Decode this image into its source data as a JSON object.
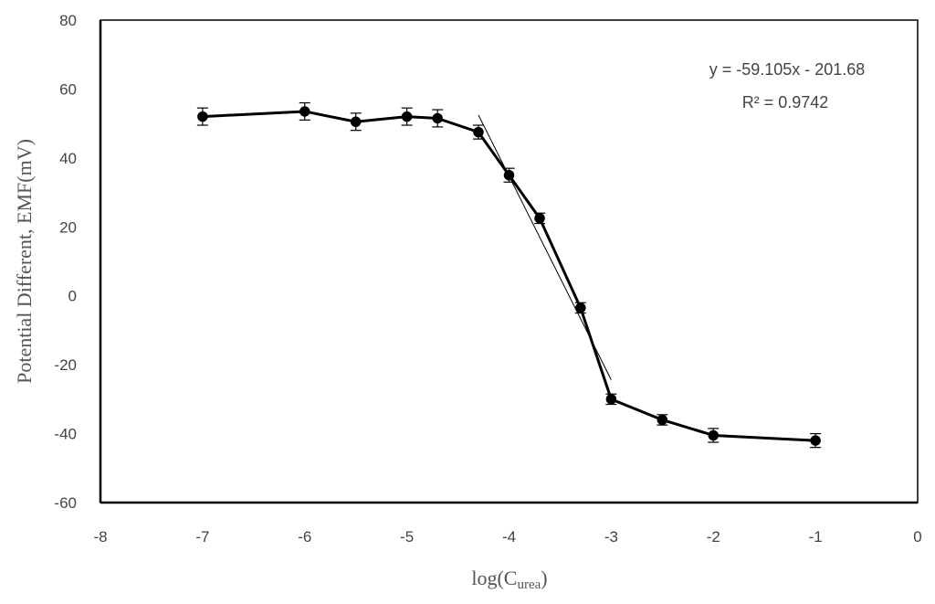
{
  "chart_data": {
    "type": "scatter",
    "title": "",
    "xlabel_main": "log(C",
    "xlabel_sub": "urea",
    "xlabel_close": ")",
    "ylabel": "Potential Different, EMF(mV)",
    "xlim": [
      -8,
      0
    ],
    "ylim": [
      -60,
      80
    ],
    "xticks": [
      -8,
      -7,
      -6,
      -5,
      -4,
      -3,
      -2,
      -1,
      0
    ],
    "yticks": [
      -60,
      -40,
      -20,
      0,
      20,
      40,
      60,
      80
    ],
    "grid": false,
    "series": [
      {
        "points": [
          {
            "x": -7,
            "y": 52,
            "err": 2.5
          },
          {
            "x": -6,
            "y": 53.5,
            "err": 2.5
          },
          {
            "x": -5.5,
            "y": 50.5,
            "err": 2.5
          },
          {
            "x": -5,
            "y": 52,
            "err": 2.5
          },
          {
            "x": -4.7,
            "y": 51.5,
            "err": 2.5
          },
          {
            "x": -4.3,
            "y": 47.5,
            "err": 2
          },
          {
            "x": -4,
            "y": 35,
            "err": 2
          },
          {
            "x": -3.7,
            "y": 22.5,
            "err": 1.5
          },
          {
            "x": -3.3,
            "y": -3.5,
            "err": 1.5
          },
          {
            "x": -3,
            "y": -30,
            "err": 1.5
          },
          {
            "x": -2.5,
            "y": -36,
            "err": 1.5
          },
          {
            "x": -2,
            "y": -40.5,
            "err": 2
          },
          {
            "x": -1,
            "y": -42,
            "err": 2
          }
        ]
      }
    ],
    "trendline": {
      "slope": -59.105,
      "intercept": -201.68,
      "x_range": [
        -4.3,
        -3
      ],
      "equation": "y = -59.105x  - 201.68",
      "r2": "R² = 0.9742"
    }
  }
}
